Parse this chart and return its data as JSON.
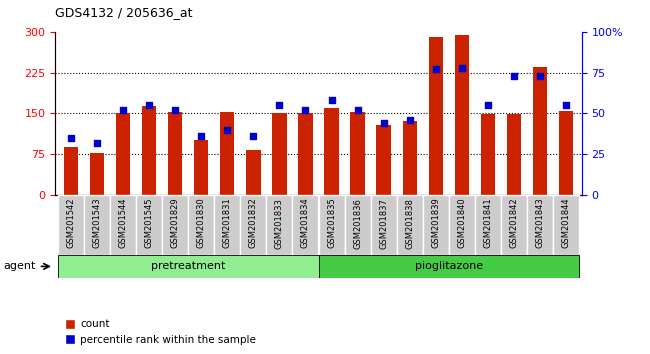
{
  "title": "GDS4132 / 205636_at",
  "samples": [
    "GSM201542",
    "GSM201543",
    "GSM201544",
    "GSM201545",
    "GSM201829",
    "GSM201830",
    "GSM201831",
    "GSM201832",
    "GSM201833",
    "GSM201834",
    "GSM201835",
    "GSM201836",
    "GSM201837",
    "GSM201838",
    "GSM201839",
    "GSM201840",
    "GSM201841",
    "GSM201842",
    "GSM201843",
    "GSM201844"
  ],
  "counts": [
    88,
    76,
    150,
    163,
    152,
    100,
    153,
    83,
    150,
    150,
    160,
    152,
    128,
    135,
    290,
    295,
    148,
    148,
    235,
    155
  ],
  "percentiles": [
    35,
    32,
    52,
    55,
    52,
    36,
    40,
    36,
    55,
    52,
    58,
    52,
    44,
    46,
    77,
    78,
    55,
    73,
    73,
    55
  ],
  "groups": [
    {
      "label": "pretreatment",
      "start": 0,
      "end": 9,
      "color": "#90ee90"
    },
    {
      "label": "pioglitazone",
      "start": 10,
      "end": 19,
      "color": "#44cc44"
    }
  ],
  "bar_color": "#cc2200",
  "dot_color": "#0000cc",
  "ylim_left": [
    0,
    300
  ],
  "ylim_right": [
    0,
    100
  ],
  "yticks_left": [
    0,
    75,
    150,
    225,
    300
  ],
  "yticks_right": [
    0,
    25,
    50,
    75,
    100
  ],
  "ytick_labels_right": [
    "0",
    "25",
    "50",
    "75",
    "100%"
  ],
  "hlines": [
    75,
    150,
    225
  ],
  "plot_bg": "#ffffff",
  "agent_label": "agent",
  "legend_count": "count",
  "legend_pct": "percentile rank within the sample",
  "cell_bg": "#cccccc",
  "cell_border": "#ffffff"
}
